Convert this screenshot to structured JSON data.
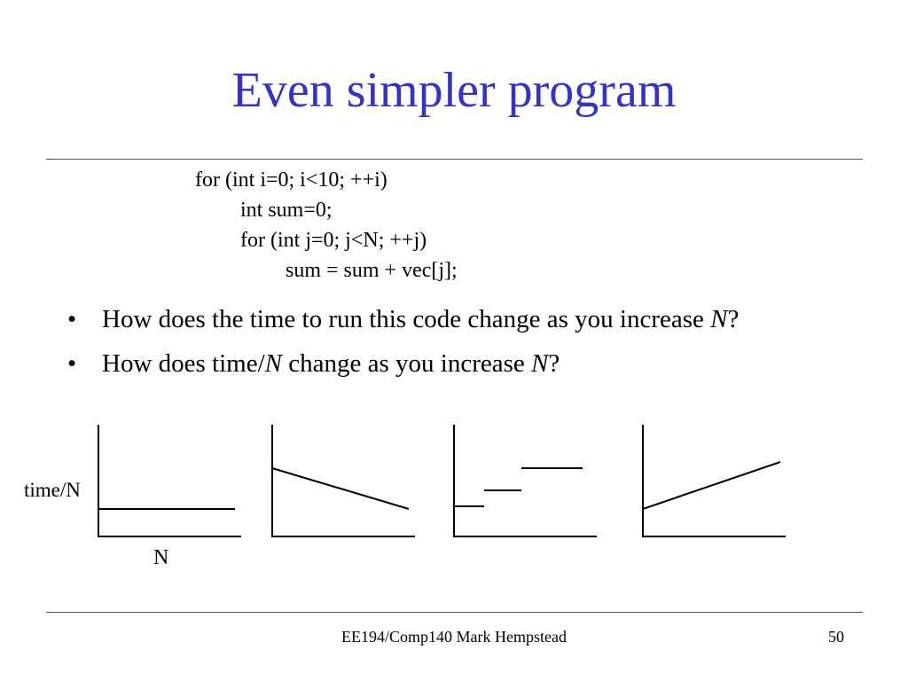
{
  "slide": {
    "title": "Even simpler program",
    "code": [
      "for (int i=0; i<10; ++i)",
      "int sum=0;",
      "for (int j=0; j<N; ++j)",
      "sum = sum + vec[j];"
    ],
    "bullets": [
      {
        "bullet": "•",
        "pre": "How does the time to run this code change as you increase ",
        "em": "N",
        "post": "?"
      },
      {
        "bullet": "•",
        "pre": "How does time/",
        "em": "N",
        "mid": " change as you increase ",
        "em2": "N",
        "post": "?"
      }
    ],
    "footer": "EE194/Comp140 Mark Hempstead",
    "page_number": "50"
  },
  "chart_data": [
    {
      "type": "line",
      "ylabel": "time/N",
      "xlabel": "N",
      "shape": "constant",
      "note": "flat horizontal line"
    },
    {
      "type": "line",
      "ylabel": "",
      "xlabel": "",
      "shape": "decreasing",
      "note": "line sloping down"
    },
    {
      "type": "line",
      "ylabel": "",
      "xlabel": "",
      "shape": "step-increasing",
      "note": "three rising steps"
    },
    {
      "type": "line",
      "ylabel": "",
      "xlabel": "",
      "shape": "increasing",
      "note": "line sloping up"
    }
  ]
}
